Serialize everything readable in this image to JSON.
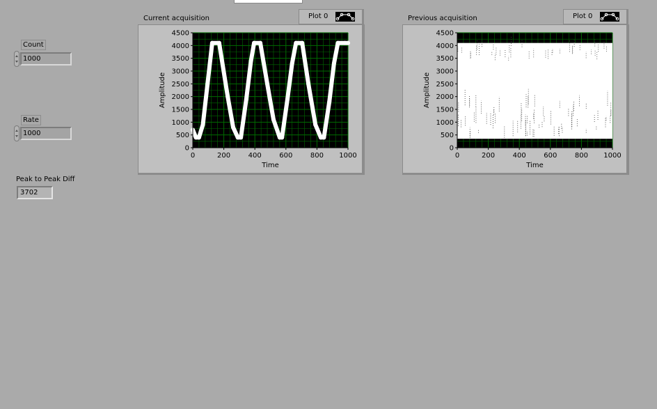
{
  "controls": {
    "count": {
      "label": "Count",
      "value": "1000"
    },
    "rate": {
      "label": "Rate",
      "value": "1000"
    },
    "peak_to_peak": {
      "label": "Peak to Peak Diff",
      "value": "3702"
    }
  },
  "graphs": {
    "current": {
      "title": "Current acquisition",
      "legend_label": "Plot 0"
    },
    "previous": {
      "title": "Previous acquisition",
      "legend_label": "Plot 0"
    }
  },
  "colors": {
    "panel_bg": "#aaaaaa",
    "plot_bg": "#000000",
    "grid": "#006b00",
    "trace": "#ffffff"
  },
  "chart_data": [
    {
      "type": "scatter",
      "title": "Current acquisition",
      "legend": [
        "Plot 0"
      ],
      "xlabel": "Time",
      "ylabel": "Amplitude",
      "xlim": [
        0,
        1000
      ],
      "ylim": [
        0,
        4500
      ],
      "xticks": [
        0,
        200,
        400,
        600,
        800,
        1000
      ],
      "yticks": [
        0,
        500,
        1000,
        1500,
        2000,
        2500,
        3000,
        3500,
        4000,
        4500
      ],
      "grid": true,
      "series": [
        {
          "name": "Plot 0",
          "x": [
            0,
            20,
            40,
            65,
            95,
            125,
            170,
            225,
            260,
            290,
            310,
            345,
            375,
            395,
            435,
            480,
            520,
            560,
            575,
            610,
            640,
            665,
            705,
            745,
            790,
            825,
            845,
            880,
            910,
            935,
            980,
            1000
          ],
          "y": [
            700,
            400,
            400,
            900,
            2500,
            4100,
            4100,
            2000,
            800,
            400,
            400,
            1900,
            3400,
            4100,
            4100,
            2500,
            1100,
            400,
            400,
            1900,
            3300,
            4100,
            4100,
            2500,
            900,
            400,
            400,
            1800,
            3300,
            4100,
            4100,
            4100
          ]
        }
      ]
    },
    {
      "type": "line",
      "title": "Previous acquisition",
      "legend": [
        "Plot 0"
      ],
      "xlabel": "Time",
      "ylabel": "Amplitude",
      "xlim": [
        0,
        1000
      ],
      "ylim": [
        0,
        4500
      ],
      "xticks": [
        0,
        200,
        400,
        600,
        800,
        1000
      ],
      "yticks": [
        0,
        500,
        1000,
        1500,
        2000,
        2500,
        3000,
        3500,
        4000,
        4500
      ],
      "grid": true,
      "envelope": {
        "y_min": 350,
        "y_max": 4100,
        "x_min": 0,
        "x_max": 1000
      }
    }
  ]
}
